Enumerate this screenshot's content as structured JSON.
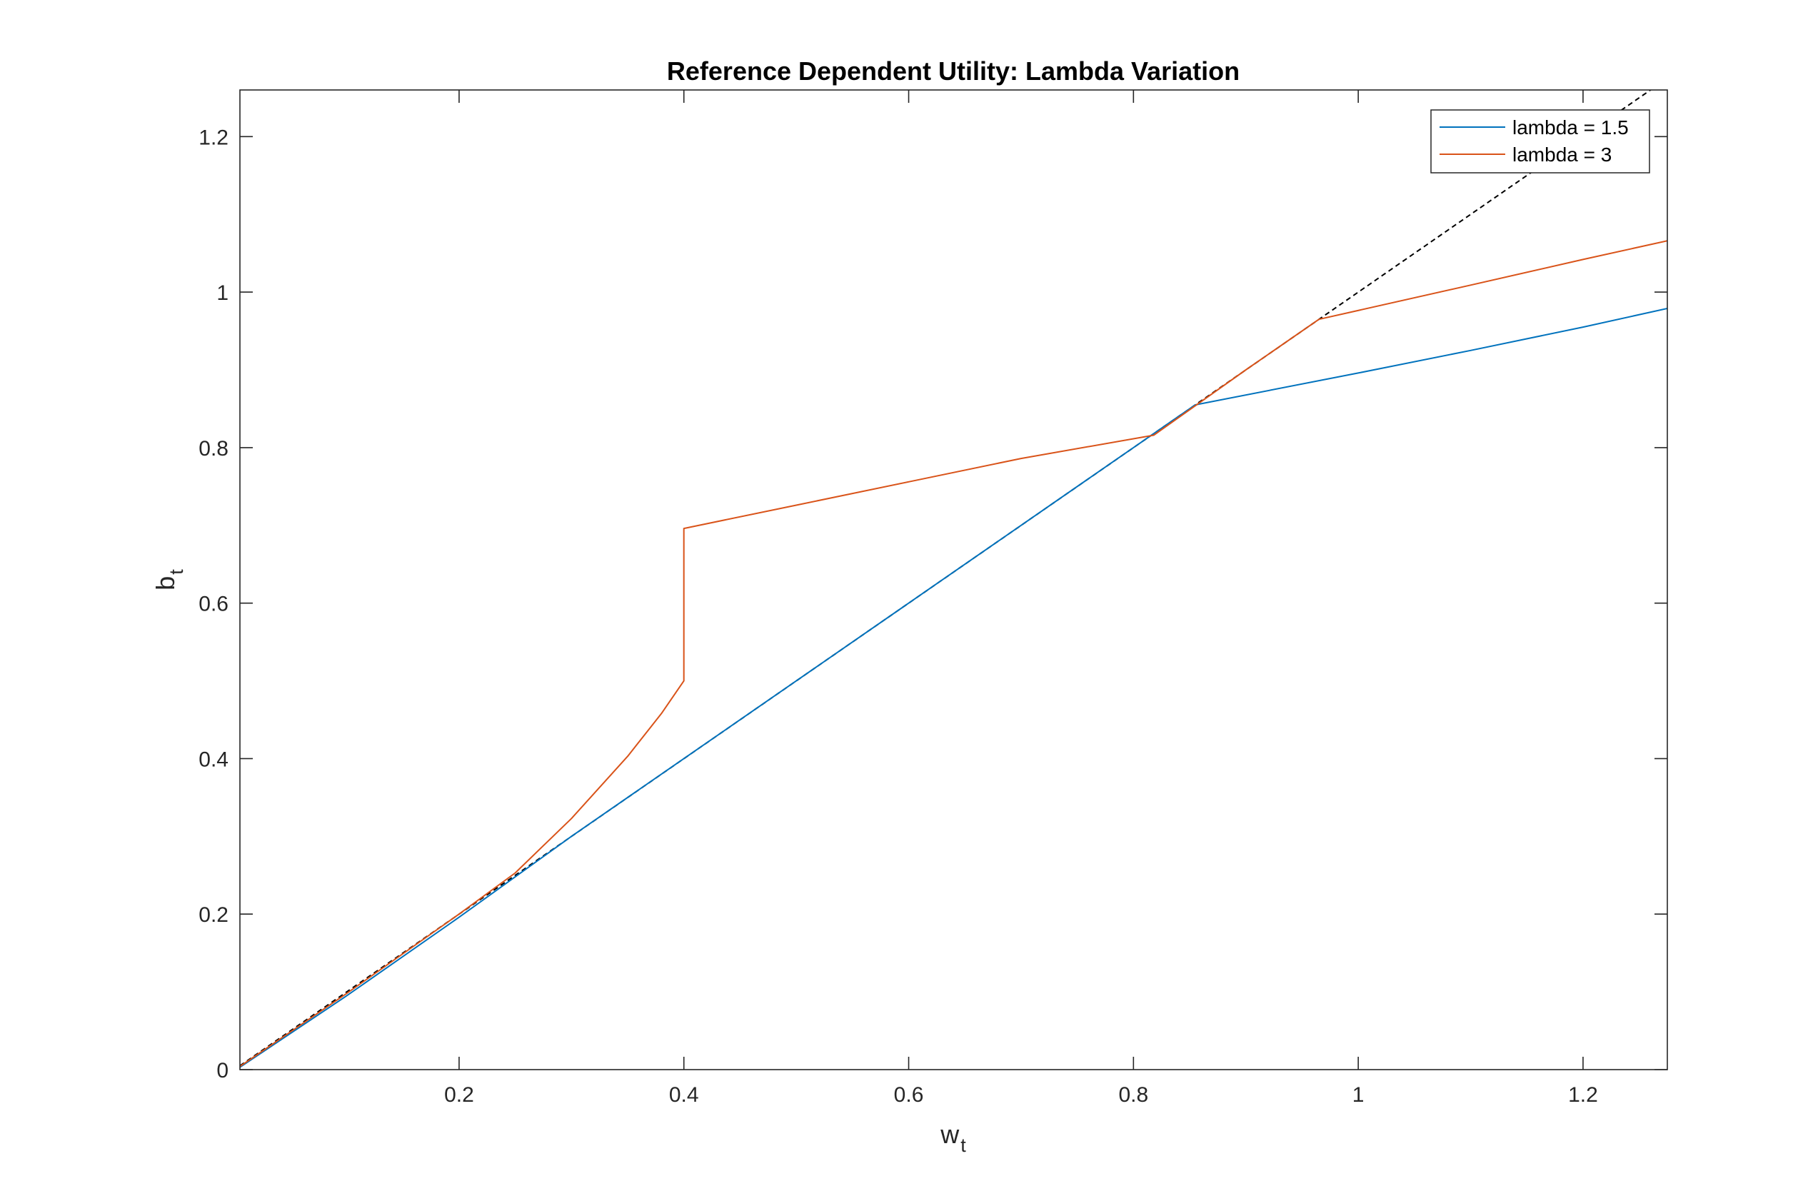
{
  "chart_data": {
    "type": "line",
    "title": "Reference Dependent Utility: Lambda Variation",
    "xlabel": {
      "base": "w",
      "subscript": "t"
    },
    "ylabel": {
      "base": "b",
      "subscript": "t"
    },
    "xlim": [
      0.005,
      1.275
    ],
    "ylim": [
      0,
      1.26
    ],
    "xticks": [
      0.2,
      0.4,
      0.6,
      0.8,
      1,
      1.2
    ],
    "xtick_labels": [
      "0.2",
      "0.4",
      "0.6",
      "0.8",
      "1",
      "1.2"
    ],
    "yticks": [
      0,
      0.2,
      0.4,
      0.6,
      0.8,
      1,
      1.2
    ],
    "ytick_labels": [
      "0",
      "0.2",
      "0.4",
      "0.6",
      "0.8",
      "1",
      "1.2"
    ],
    "grid": false,
    "legend_position": "top-right",
    "series": [
      {
        "name": "lambda = 1.5",
        "color": "#0072BD",
        "x": [
          0.005,
          0.1,
          0.2,
          0.3,
          0.4,
          0.5,
          0.6,
          0.7,
          0.8,
          0.855,
          1.0,
          1.1,
          1.2,
          1.275
        ],
        "y": [
          0.003,
          0.095,
          0.196,
          0.3,
          0.4,
          0.5,
          0.6,
          0.7,
          0.8,
          0.855,
          0.896,
          0.925,
          0.955,
          0.979
        ]
      },
      {
        "name": "lambda = 3",
        "color": "#D95319",
        "x": [
          0.005,
          0.1,
          0.2,
          0.25,
          0.3,
          0.35,
          0.38,
          0.4,
          0.4,
          0.5,
          0.6,
          0.7,
          0.818,
          0.9,
          0.965,
          1.1,
          1.2,
          1.275
        ],
        "y": [
          0.004,
          0.098,
          0.2,
          0.253,
          0.323,
          0.403,
          0.458,
          0.5,
          0.696,
          0.726,
          0.756,
          0.786,
          0.816,
          0.9,
          0.965,
          1.009,
          1.042,
          1.066
        ]
      },
      {
        "color": "#000000",
        "linestyle": "dashed",
        "x": [
          0.005,
          1.275
        ],
        "y": [
          0.005,
          1.275
        ]
      }
    ]
  }
}
